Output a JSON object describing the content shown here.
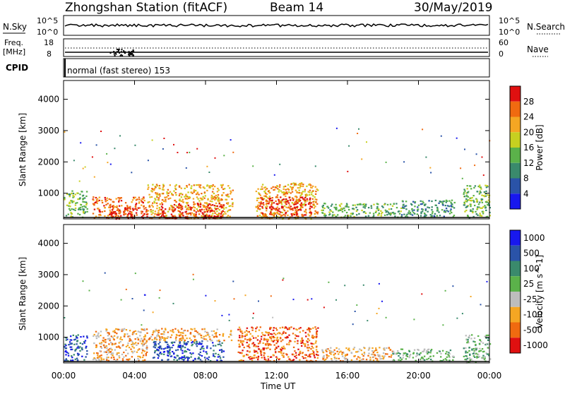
{
  "header": {
    "station": "Zhongshan Station (fitACF)",
    "beam": "Beam 14",
    "date": "30/May/2019"
  },
  "top_strips": {
    "nsky_label": "N.Sky",
    "nsky_ticks": [
      "10^5",
      "10^0"
    ],
    "nsearch_label": "N.Search",
    "nsearch_ticks": [
      "10^5",
      "10^0"
    ],
    "freq_label_1": "Freq.",
    "freq_label_2": "[MHz]",
    "freq_ticks": [
      "18",
      "8"
    ],
    "nave_label": "Nave",
    "nave_ticks": [
      "60",
      "0"
    ],
    "cpid_label": "CPID",
    "cpid_text": "normal (fast stereo) 153"
  },
  "chart_data": [
    {
      "type": "heatmap",
      "title": "",
      "ylabel": "Slant Range [km]",
      "xlabel": "",
      "ylim": [
        180,
        4600
      ],
      "yticks": [
        "1000",
        "2000",
        "3000",
        "4000"
      ],
      "colorbar_label": "Power [dB]",
      "colorbar_ticks": [
        "4",
        "8",
        "12",
        "16",
        "20",
        "24",
        "28"
      ],
      "colorbar_range": [
        0,
        32
      ],
      "colors": [
        "#1818ee",
        "#2a53a8",
        "#3a8a6c",
        "#5bb24a",
        "#c7d020",
        "#f5a623",
        "#f06a10",
        "#e01010"
      ],
      "regions": [
        {
          "t0": 0.0,
          "t1": 1.3,
          "r0": 250,
          "r1": 1100,
          "level": 3
        },
        {
          "t0": 1.6,
          "t1": 4.7,
          "r0": 200,
          "r1": 900,
          "level": 6
        },
        {
          "t0": 2.6,
          "t1": 3.9,
          "r0": 200,
          "r1": 600,
          "level": 7
        },
        {
          "t0": 4.7,
          "t1": 9.5,
          "r0": 200,
          "r1": 1300,
          "level": 5
        },
        {
          "t0": 5.2,
          "t1": 9.0,
          "r0": 200,
          "r1": 700,
          "level": 7
        },
        {
          "t0": 10.8,
          "t1": 14.3,
          "r0": 200,
          "r1": 1350,
          "level": 5
        },
        {
          "t0": 11.0,
          "t1": 14.0,
          "r0": 300,
          "r1": 900,
          "level": 7
        },
        {
          "t0": 14.5,
          "t1": 19.0,
          "r0": 250,
          "r1": 700,
          "level": 3
        },
        {
          "t0": 19.0,
          "t1": 22.0,
          "r0": 250,
          "r1": 800,
          "level": 2
        },
        {
          "t0": 22.5,
          "t1": 24.0,
          "r0": 200,
          "r1": 1300,
          "level": 3
        }
      ]
    },
    {
      "type": "heatmap",
      "title": "",
      "ylabel": "Slant Range [km]",
      "xlabel": "Time UT",
      "ylim": [
        180,
        4600
      ],
      "yticks": [
        "1000",
        "2000",
        "3000",
        "4000"
      ],
      "xticks": [
        "00:00",
        "04:00",
        "08:00",
        "12:00",
        "16:00",
        "20:00",
        "00:00"
      ],
      "xlim_hours": [
        0,
        24
      ],
      "colorbar_label": "Velocity [m s^-1]",
      "colorbar_ticks": [
        "1000",
        "500",
        "100",
        "25",
        "-25",
        "-100",
        "-500",
        "-1000"
      ],
      "colorbar_range": [
        -1000,
        1000
      ],
      "colors": [
        "#1818ee",
        "#2a53a8",
        "#3a8a6c",
        "#5bb24a",
        "#bdbdbd",
        "#f5a623",
        "#f06a10",
        "#e01010"
      ],
      "regions": [
        {
          "t0": 0.0,
          "t1": 1.3,
          "r0": 250,
          "r1": 1100,
          "level": 1
        },
        {
          "t0": 1.6,
          "t1": 4.7,
          "r0": 250,
          "r1": 1300,
          "level": 5
        },
        {
          "t0": 5.0,
          "t1": 9.0,
          "r0": 250,
          "r1": 900,
          "level": 1
        },
        {
          "t0": 4.5,
          "t1": 9.5,
          "r0": 900,
          "r1": 1300,
          "level": 5
        },
        {
          "t0": 9.8,
          "t1": 14.3,
          "r0": 250,
          "r1": 1350,
          "level": 6
        },
        {
          "t0": 14.5,
          "t1": 18.5,
          "r0": 250,
          "r1": 700,
          "level": 5
        },
        {
          "t0": 18.5,
          "t1": 22.0,
          "r0": 250,
          "r1": 650,
          "level": 3
        },
        {
          "t0": 22.5,
          "t1": 24.0,
          "r0": 200,
          "r1": 1100,
          "level": 3
        }
      ]
    }
  ]
}
